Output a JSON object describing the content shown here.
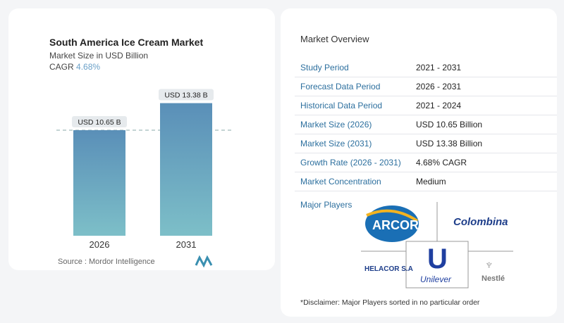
{
  "chart_data": {
    "type": "bar",
    "title": "South America Ice Cream Market",
    "subtitle": "Market Size in USD Billion",
    "cagr_label": "CAGR",
    "cagr_value": "4.68%",
    "categories": [
      "2026",
      "2031"
    ],
    "values": [
      10.65,
      13.38
    ],
    "data_labels": [
      "USD 10.65 B",
      "USD 13.38 B"
    ],
    "ylim": [
      0,
      14.2
    ],
    "grid": false,
    "bar_color": "#5a93b8",
    "reference_line": 10.65
  },
  "source": "Source :  Mordor Intelligence",
  "overview": {
    "title": "Market Overview",
    "rows": [
      {
        "label": "Study Period",
        "value": "2021 - 2031"
      },
      {
        "label": "Forecast Data Period",
        "value": "2026 - 2031"
      },
      {
        "label": "Historical Data Period",
        "value": "2021 - 2024"
      },
      {
        "label": "Market Size (2026)",
        "value": "USD 10.65 Billion"
      },
      {
        "label": "Market Size (2031)",
        "value": "USD 13.38 Billion"
      },
      {
        "label": "Growth Rate (2026 - 2031)",
        "value": "4.68% CAGR"
      },
      {
        "label": "Market Concentration",
        "value": "Medium"
      }
    ]
  },
  "major_players": {
    "title": "Major Players",
    "logos": [
      "ARCOR",
      "Colombina",
      "HELACOR S.A",
      "Unilever",
      "Nestlé"
    ]
  },
  "disclaimer": "*Disclaimer: Major Players sorted in no particular order"
}
